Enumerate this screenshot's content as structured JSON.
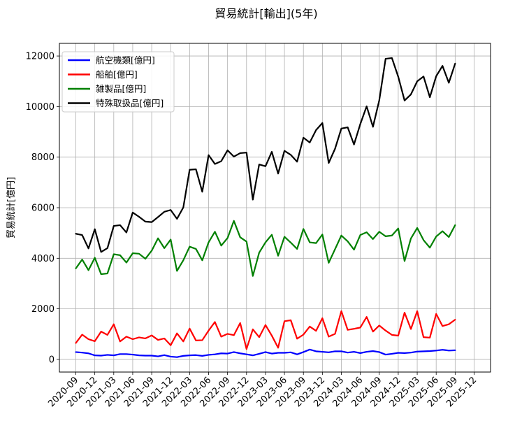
{
  "chart_data": {
    "type": "line",
    "title": "貿易統計[輸出](5年)",
    "xlabel": "",
    "ylabel": "貿易統計[億円]",
    "ylim": [
      -500,
      12500
    ],
    "yticks": [
      0,
      2000,
      4000,
      6000,
      8000,
      10000,
      12000
    ],
    "xticks": [
      "2020-09",
      "2020-12",
      "2021-03",
      "2021-06",
      "2021-09",
      "2021-12",
      "2022-03",
      "2022-06",
      "2022-09",
      "2022-12",
      "2023-03",
      "2023-06",
      "2023-09",
      "2023-12",
      "2024-03",
      "2024-06",
      "2024-09",
      "2024-12",
      "2025-03",
      "2025-06",
      "2025-09",
      "2025-12"
    ],
    "x_start": "2020-09",
    "grid": true,
    "legend_position": "upper-left",
    "series": [
      {
        "name": "航空機類[億円]",
        "color": "#0000ff",
        "values": [
          290,
          270,
          240,
          160,
          150,
          180,
          160,
          210,
          210,
          190,
          160,
          150,
          150,
          120,
          170,
          110,
          90,
          140,
          160,
          170,
          140,
          180,
          200,
          240,
          230,
          290,
          240,
          200,
          160,
          220,
          290,
          230,
          260,
          260,
          280,
          200,
          290,
          390,
          320,
          300,
          280,
          320,
          320,
          270,
          300,
          250,
          300,
          330,
          290,
          190,
          220,
          260,
          250,
          270,
          310,
          320,
          330,
          350,
          380,
          350,
          360
        ]
      },
      {
        "name": "船舶[億円]",
        "color": "#ff0000",
        "values": [
          650,
          980,
          800,
          720,
          1100,
          970,
          1390,
          710,
          900,
          800,
          870,
          830,
          950,
          770,
          830,
          560,
          1030,
          710,
          1220,
          750,
          760,
          1140,
          1480,
          900,
          1010,
          960,
          1440,
          410,
          1190,
          880,
          1360,
          940,
          460,
          1510,
          1550,
          820,
          980,
          1300,
          1130,
          1630,
          900,
          1010,
          1910,
          1170,
          1210,
          1260,
          1680,
          1100,
          1340,
          1140,
          970,
          940,
          1850,
          1200,
          1910,
          880,
          860,
          1800,
          1320,
          1390,
          1570
        ]
      },
      {
        "name": "雑製品[億円]",
        "color": "#008000",
        "values": [
          3600,
          3950,
          3530,
          4020,
          3370,
          3400,
          4160,
          4120,
          3830,
          4200,
          4180,
          3980,
          4300,
          4790,
          4400,
          4740,
          3500,
          3920,
          4460,
          4370,
          3920,
          4630,
          5050,
          4500,
          4800,
          5480,
          4830,
          4660,
          3300,
          4220,
          4630,
          4930,
          4100,
          4850,
          4620,
          4370,
          5160,
          4630,
          4600,
          4940,
          3820,
          4360,
          4900,
          4670,
          4340,
          4920,
          5030,
          4760,
          5050,
          4870,
          4900,
          5180,
          3890,
          4780,
          5200,
          4720,
          4420,
          4860,
          5070,
          4840,
          5310
        ]
      },
      {
        "name": "特殊取扱品[億円]",
        "color": "#000000",
        "values": [
          4970,
          4920,
          4390,
          5150,
          4250,
          4400,
          5280,
          5310,
          5020,
          5810,
          5640,
          5450,
          5430,
          5630,
          5840,
          5910,
          5560,
          6010,
          7500,
          7520,
          6630,
          8080,
          7730,
          7840,
          8270,
          8020,
          8160,
          8180,
          6320,
          7710,
          7640,
          8210,
          7350,
          8250,
          8090,
          7820,
          8770,
          8580,
          9070,
          9350,
          7770,
          8330,
          9130,
          9180,
          8500,
          9310,
          10010,
          9200,
          10250,
          11890,
          11920,
          11180,
          10240,
          10480,
          11000,
          11190,
          10370,
          11200,
          11610,
          10940,
          11700
        ]
      }
    ]
  }
}
